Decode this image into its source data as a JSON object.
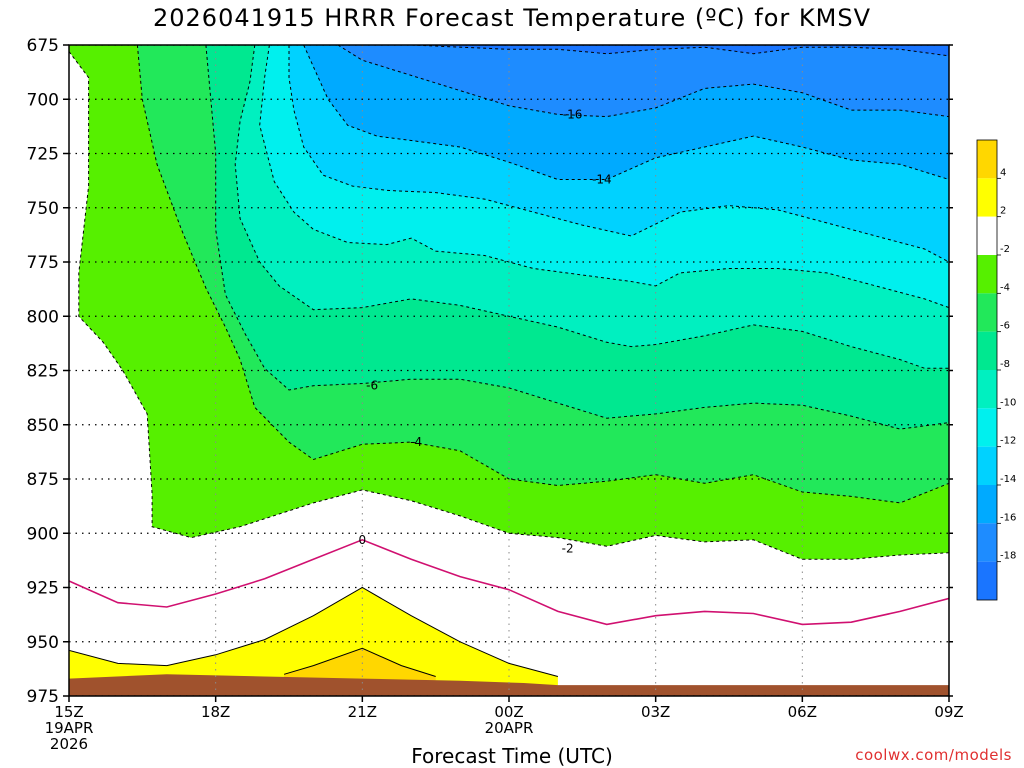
{
  "chart_data": {
    "type": "heatmap",
    "title": "2026041915 HRRR Forecast Temperature (ºC) for KMSV",
    "xlabel": "Forecast Time (UTC)",
    "ylabel": "",
    "y_axis": {
      "reversed": true,
      "range": [
        675,
        975
      ],
      "ticks": [
        675,
        700,
        725,
        750,
        775,
        800,
        825,
        850,
        875,
        900,
        925,
        950,
        975
      ]
    },
    "x_axis": {
      "range_hours": [
        0,
        18
      ],
      "ticks": [
        {
          "hour": 0,
          "label": "15Z",
          "sub": [
            "19APR",
            "2026"
          ]
        },
        {
          "hour": 3,
          "label": "18Z",
          "sub": []
        },
        {
          "hour": 6,
          "label": "21Z",
          "sub": []
        },
        {
          "hour": 9,
          "label": "00Z",
          "sub": [
            "20APR"
          ]
        },
        {
          "hour": 12,
          "label": "03Z",
          "sub": []
        },
        {
          "hour": 15,
          "label": "06Z",
          "sub": []
        },
        {
          "hour": 18,
          "label": "09Z",
          "sub": []
        }
      ]
    },
    "grid": true,
    "colorbar": {
      "placement": "right",
      "bands": [
        {
          "lo": -20,
          "hi": -18,
          "color": "#1a75ff"
        },
        {
          "lo": -18,
          "hi": -16,
          "color": "#1e8cff"
        },
        {
          "lo": -16,
          "hi": -14,
          "color": "#00aaff"
        },
        {
          "lo": -14,
          "hi": -12,
          "color": "#00d2ff"
        },
        {
          "lo": -12,
          "hi": -10,
          "color": "#00f0ee"
        },
        {
          "lo": -10,
          "hi": -8,
          "color": "#00f0c0"
        },
        {
          "lo": -8,
          "hi": -6,
          "color": "#00e890"
        },
        {
          "lo": -6,
          "hi": -4,
          "color": "#22e85a"
        },
        {
          "lo": -4,
          "hi": -2,
          "color": "#56f000"
        },
        {
          "lo": -2,
          "hi": 2,
          "color": "#ffffff"
        },
        {
          "lo": 2,
          "hi": 4,
          "color": "#ffff00"
        },
        {
          "lo": 4,
          "hi": 6,
          "color": "#ffd700"
        }
      ],
      "tick_labels": [
        "4",
        "2",
        "-2",
        "-4",
        "-6",
        "-8",
        "-10",
        "-12",
        "-14",
        "-16",
        "-18"
      ]
    },
    "contours": [
      {
        "level": -18,
        "style": "dashed",
        "points": [
          [
            7,
            675
          ],
          [
            9,
            677
          ],
          [
            10,
            677
          ],
          [
            11,
            679
          ],
          [
            12,
            677
          ],
          [
            13,
            676
          ],
          [
            14,
            679
          ],
          [
            15,
            676
          ],
          [
            16,
            676
          ],
          [
            17,
            677
          ],
          [
            18,
            680
          ]
        ]
      },
      {
        "level": -16,
        "style": "dashed",
        "points": [
          [
            5.5,
            675
          ],
          [
            6,
            682
          ],
          [
            7,
            689
          ],
          [
            8,
            696
          ],
          [
            9,
            703
          ],
          [
            10,
            707
          ],
          [
            11,
            708
          ],
          [
            12,
            704
          ],
          [
            13,
            695
          ],
          [
            14,
            693
          ],
          [
            15,
            697
          ],
          [
            16,
            705
          ],
          [
            17,
            705
          ],
          [
            18,
            708
          ]
        ]
      },
      {
        "level": -14,
        "style": "dashed",
        "points": [
          [
            4.8,
            675
          ],
          [
            5,
            685
          ],
          [
            5.3,
            700
          ],
          [
            5.7,
            712
          ],
          [
            6.3,
            717
          ],
          [
            7,
            719
          ],
          [
            8,
            722
          ],
          [
            9,
            729
          ],
          [
            10,
            737
          ],
          [
            11,
            737
          ],
          [
            12,
            727
          ],
          [
            13,
            722
          ],
          [
            14,
            717
          ],
          [
            15,
            722
          ],
          [
            16,
            728
          ],
          [
            17,
            730
          ],
          [
            18,
            737
          ]
        ]
      },
      {
        "level": -12,
        "style": "dashed",
        "points": [
          [
            4.5,
            675
          ],
          [
            4.5,
            690
          ],
          [
            4.6,
            705
          ],
          [
            4.8,
            722
          ],
          [
            5.2,
            735
          ],
          [
            5.8,
            740
          ],
          [
            6.5,
            742
          ],
          [
            7.5,
            743
          ],
          [
            8.5,
            746
          ],
          [
            9.5,
            752
          ],
          [
            10.5,
            758
          ],
          [
            11.5,
            763
          ],
          [
            12.5,
            752
          ],
          [
            13.5,
            749
          ],
          [
            14.5,
            751
          ],
          [
            15.5,
            757
          ],
          [
            16.5,
            763
          ],
          [
            17.5,
            769
          ],
          [
            18,
            775
          ]
        ]
      },
      {
        "level": -10,
        "style": "dashed",
        "points": [
          [
            4.1,
            675
          ],
          [
            4,
            690
          ],
          [
            3.9,
            712
          ],
          [
            4.2,
            738
          ],
          [
            4.6,
            752
          ],
          [
            5,
            760
          ],
          [
            5.7,
            766
          ],
          [
            6.5,
            767
          ],
          [
            7,
            764
          ],
          [
            7.5,
            770
          ],
          [
            8.5,
            772
          ],
          [
            9.5,
            778
          ],
          [
            10.5,
            781
          ],
          [
            11.5,
            784
          ],
          [
            12,
            786
          ],
          [
            12.5,
            780
          ],
          [
            13.5,
            778
          ],
          [
            14.5,
            778
          ],
          [
            15.5,
            780
          ],
          [
            16.5,
            786
          ],
          [
            17.5,
            792
          ],
          [
            18,
            796
          ]
        ]
      },
      {
        "level": -8,
        "style": "dashed",
        "points": [
          [
            3.8,
            675
          ],
          [
            3.7,
            692
          ],
          [
            3.5,
            710
          ],
          [
            3.4,
            730
          ],
          [
            3.5,
            755
          ],
          [
            3.9,
            775
          ],
          [
            4.3,
            786
          ],
          [
            5,
            797
          ],
          [
            6,
            796
          ],
          [
            7,
            792
          ],
          [
            8,
            795
          ],
          [
            9,
            800
          ],
          [
            10,
            805
          ],
          [
            11,
            812
          ],
          [
            11.5,
            814
          ],
          [
            12,
            813
          ],
          [
            13,
            809
          ],
          [
            14,
            804
          ],
          [
            15,
            807
          ],
          [
            16,
            814
          ],
          [
            17,
            820
          ],
          [
            17.5,
            824
          ],
          [
            18,
            824
          ]
        ]
      },
      {
        "level": -6,
        "style": "dashed",
        "points": [
          [
            2.8,
            675
          ],
          [
            2.9,
            700
          ],
          [
            3.0,
            725
          ],
          [
            3.0,
            760
          ],
          [
            3.2,
            790
          ],
          [
            3.6,
            808
          ],
          [
            4,
            824
          ],
          [
            4.5,
            834
          ],
          [
            5,
            832
          ],
          [
            6,
            831
          ],
          [
            7,
            829
          ],
          [
            8,
            829
          ],
          [
            9,
            833
          ],
          [
            10,
            840
          ],
          [
            11,
            847
          ],
          [
            12,
            845
          ],
          [
            13,
            842
          ],
          [
            14,
            840
          ],
          [
            15,
            841
          ],
          [
            16,
            846
          ],
          [
            17,
            852
          ],
          [
            18,
            849
          ]
        ]
      },
      {
        "level": -4,
        "style": "dashed",
        "points": [
          [
            1.4,
            675
          ],
          [
            1.5,
            700
          ],
          [
            1.8,
            730
          ],
          [
            2.3,
            760
          ],
          [
            2.8,
            787
          ],
          [
            3.2,
            805
          ],
          [
            3.5,
            820
          ],
          [
            3.8,
            842
          ],
          [
            4.5,
            858
          ],
          [
            5,
            866
          ],
          [
            6,
            859
          ],
          [
            7,
            858
          ],
          [
            8,
            862
          ],
          [
            9,
            875
          ],
          [
            10,
            878
          ],
          [
            11,
            876
          ],
          [
            12,
            873
          ],
          [
            13,
            877
          ],
          [
            14,
            873
          ],
          [
            15,
            881
          ],
          [
            16,
            883
          ],
          [
            17,
            886
          ],
          [
            18,
            877
          ]
        ]
      },
      {
        "level": -2,
        "style": "dashed",
        "points": [
          [
            0,
            678
          ],
          [
            0.4,
            690
          ],
          [
            0.4,
            740
          ],
          [
            0.2,
            780
          ],
          [
            0.2,
            800
          ],
          [
            0.7,
            812
          ],
          [
            1.1,
            825
          ],
          [
            1.6,
            845
          ],
          [
            1.7,
            882
          ],
          [
            1.7,
            897
          ],
          [
            2.5,
            902
          ],
          [
            3.5,
            897
          ],
          [
            5,
            886
          ],
          [
            6,
            880
          ],
          [
            7,
            885
          ],
          [
            8,
            892
          ],
          [
            9,
            900
          ],
          [
            10,
            902
          ],
          [
            11,
            906
          ],
          [
            12,
            901
          ],
          [
            13,
            904
          ],
          [
            14,
            903
          ],
          [
            15,
            912
          ],
          [
            16,
            912
          ],
          [
            17,
            910
          ],
          [
            18,
            909
          ]
        ]
      },
      {
        "level": 0,
        "style": "solid",
        "color": "#d01070",
        "points": [
          [
            0,
            922
          ],
          [
            1,
            932
          ],
          [
            2,
            934
          ],
          [
            3,
            928
          ],
          [
            4,
            921
          ],
          [
            5,
            912
          ],
          [
            6,
            903
          ],
          [
            7,
            912
          ],
          [
            8,
            920
          ],
          [
            9,
            926
          ],
          [
            10,
            936
          ],
          [
            11,
            942
          ],
          [
            12,
            938
          ],
          [
            13,
            936
          ],
          [
            14,
            937
          ],
          [
            15,
            942
          ],
          [
            16,
            941
          ],
          [
            17,
            936
          ],
          [
            18,
            930
          ]
        ]
      },
      {
        "level": 2,
        "style": "solid",
        "points": [
          [
            0,
            954
          ],
          [
            1,
            960
          ],
          [
            2,
            961
          ],
          [
            3,
            956
          ],
          [
            4,
            949
          ],
          [
            5,
            938
          ],
          [
            6,
            925
          ],
          [
            7,
            938
          ],
          [
            8,
            950
          ],
          [
            9,
            960
          ],
          [
            10,
            966
          ]
        ]
      },
      {
        "level": 4,
        "style": "solid",
        "points": [
          [
            4.4,
            965
          ],
          [
            5,
            961
          ],
          [
            6,
            953
          ],
          [
            6.8,
            961
          ],
          [
            7.5,
            966
          ]
        ]
      }
    ],
    "contour_labels": [
      {
        "text": "-16",
        "hour": 10.3,
        "p": 707
      },
      {
        "text": "-14",
        "hour": 10.9,
        "p": 737
      },
      {
        "text": "-6",
        "hour": 6.2,
        "p": 832
      },
      {
        "text": "-4",
        "hour": 7.1,
        "p": 858
      },
      {
        "text": "0",
        "hour": 6.0,
        "p": 903
      },
      {
        "text": "-2",
        "hour": 10.2,
        "p": 907
      }
    ],
    "terrain": {
      "color": "#a0522d",
      "points": [
        [
          0,
          967
        ],
        [
          2,
          965
        ],
        [
          4,
          966
        ],
        [
          6,
          967
        ],
        [
          8,
          968
        ],
        [
          9.3,
          969
        ],
        [
          10,
          970
        ],
        [
          18,
          970
        ]
      ]
    }
  },
  "credit": "coolwx.com/models"
}
